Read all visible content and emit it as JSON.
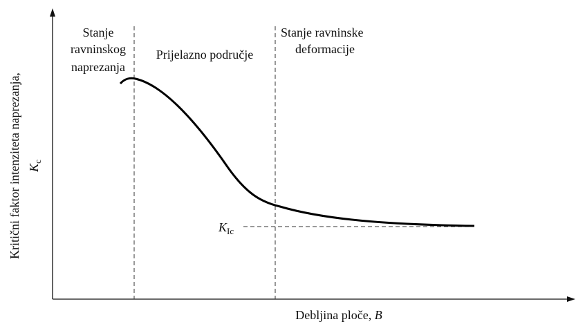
{
  "regions": [
    {
      "lines": [
        "Stanje",
        "ravninskog",
        "naprezanja"
      ]
    },
    {
      "lines": [
        "Prijelazno područje"
      ]
    },
    {
      "lines": [
        "Stanje ravninske",
        "deformacije"
      ]
    }
  ],
  "y_axis": {
    "text": "Kritični faktor intenziteta naprezanja,",
    "symbol": "K",
    "subscript": "c"
  },
  "x_axis": {
    "text": "Debljina ploče, ",
    "symbol": "B"
  },
  "asymptote": {
    "symbol": "K",
    "subscript": "Ic"
  }
}
